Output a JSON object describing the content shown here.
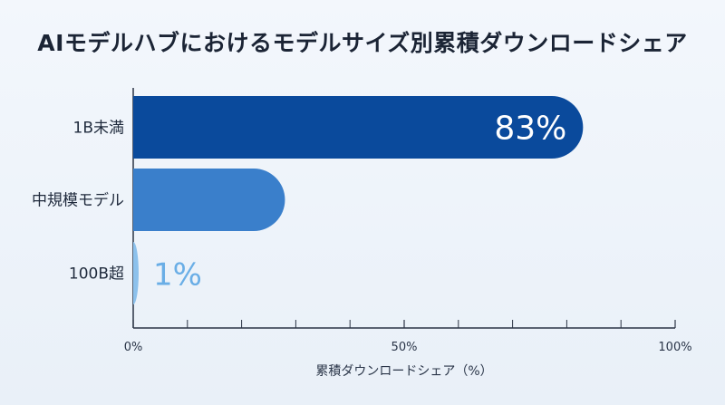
{
  "chart_data": {
    "type": "bar",
    "orientation": "horizontal",
    "title": "AIモデルハブにおけるモデルサイズ別累積ダウンロードシェア",
    "categories": [
      "1B未満",
      "中規模モデル",
      "100B超"
    ],
    "values": [
      83,
      28,
      1
    ],
    "data_labels": [
      "83%",
      "",
      "1%"
    ],
    "xlabel": "累積ダウンロードシェア（%）",
    "xlim": [
      0,
      100
    ],
    "x_ticks": [
      {
        "value": 0,
        "label": "0%"
      },
      {
        "value": 50,
        "label": "50%"
      },
      {
        "value": 100,
        "label": "100%"
      }
    ],
    "x_minor_ticks": [
      10,
      20,
      30,
      40,
      60,
      70,
      80,
      90
    ],
    "colors": [
      "#0a4a9c",
      "#3a7fcb",
      "#8cc1ec"
    ],
    "data_label_colors": [
      "#ffffff",
      "#ffffff",
      "#6aaee6"
    ],
    "grid": false
  }
}
